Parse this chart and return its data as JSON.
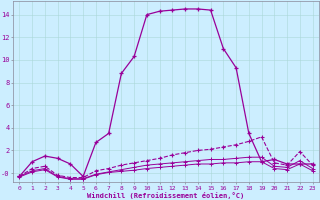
{
  "xlabel": "Windchill (Refroidissement éolien,°C)",
  "bg_color": "#cceeff",
  "line_color": "#990099",
  "xlim": [
    -0.5,
    23.5
  ],
  "ylim": [
    -0.8,
    15.2
  ],
  "yticks": [
    0,
    2,
    4,
    6,
    8,
    10,
    12,
    14
  ],
  "ytick_labels": [
    "-0",
    "2",
    "4",
    "6",
    "8",
    "10",
    "12",
    "14"
  ],
  "xticks": [
    0,
    1,
    2,
    3,
    4,
    5,
    6,
    7,
    8,
    9,
    10,
    11,
    12,
    13,
    14,
    15,
    16,
    17,
    18,
    19,
    20,
    21,
    22,
    23
  ],
  "line1_x": [
    0,
    1,
    2,
    3,
    4,
    5,
    6,
    7,
    8,
    9,
    10,
    11,
    12,
    13,
    14,
    15,
    16,
    17,
    18,
    19,
    20,
    21,
    22,
    23
  ],
  "line1_y": [
    -0.3,
    1.0,
    1.5,
    1.3,
    0.8,
    -0.3,
    2.7,
    3.5,
    8.8,
    10.3,
    14.0,
    14.3,
    14.4,
    14.5,
    14.5,
    14.4,
    11.0,
    9.3,
    3.5,
    1.0,
    1.2,
    0.8,
    0.8,
    0.8
  ],
  "line2_x": [
    0,
    1,
    2,
    3,
    4,
    5,
    6,
    7,
    8,
    9,
    10,
    11,
    12,
    13,
    14,
    15,
    16,
    17,
    18,
    19,
    20,
    21,
    22,
    23
  ],
  "line2_y": [
    -0.3,
    0.4,
    0.6,
    -0.2,
    -0.4,
    -0.4,
    0.2,
    0.4,
    0.7,
    0.9,
    1.1,
    1.3,
    1.6,
    1.8,
    2.0,
    2.1,
    2.3,
    2.5,
    2.8,
    3.2,
    0.9,
    0.7,
    1.9,
    0.7
  ],
  "line3_x": [
    0,
    1,
    2,
    3,
    4,
    5,
    6,
    7,
    8,
    9,
    10,
    11,
    12,
    13,
    14,
    15,
    16,
    17,
    18,
    19,
    20,
    21,
    22,
    23
  ],
  "line3_y": [
    -0.3,
    0.2,
    0.4,
    -0.3,
    -0.5,
    -0.5,
    -0.1,
    0.1,
    0.3,
    0.5,
    0.7,
    0.8,
    0.9,
    1.0,
    1.1,
    1.2,
    1.2,
    1.3,
    1.4,
    1.4,
    0.6,
    0.5,
    1.1,
    0.4
  ],
  "line4_x": [
    0,
    1,
    2,
    3,
    4,
    5,
    6,
    7,
    8,
    9,
    10,
    11,
    12,
    13,
    14,
    15,
    16,
    17,
    18,
    19,
    20,
    21,
    22,
    23
  ],
  "line4_y": [
    -0.35,
    0.1,
    0.3,
    -0.35,
    -0.55,
    -0.55,
    -0.15,
    0.05,
    0.15,
    0.25,
    0.4,
    0.5,
    0.6,
    0.7,
    0.8,
    0.8,
    0.9,
    0.9,
    1.0,
    1.0,
    0.4,
    0.3,
    0.8,
    0.2
  ]
}
